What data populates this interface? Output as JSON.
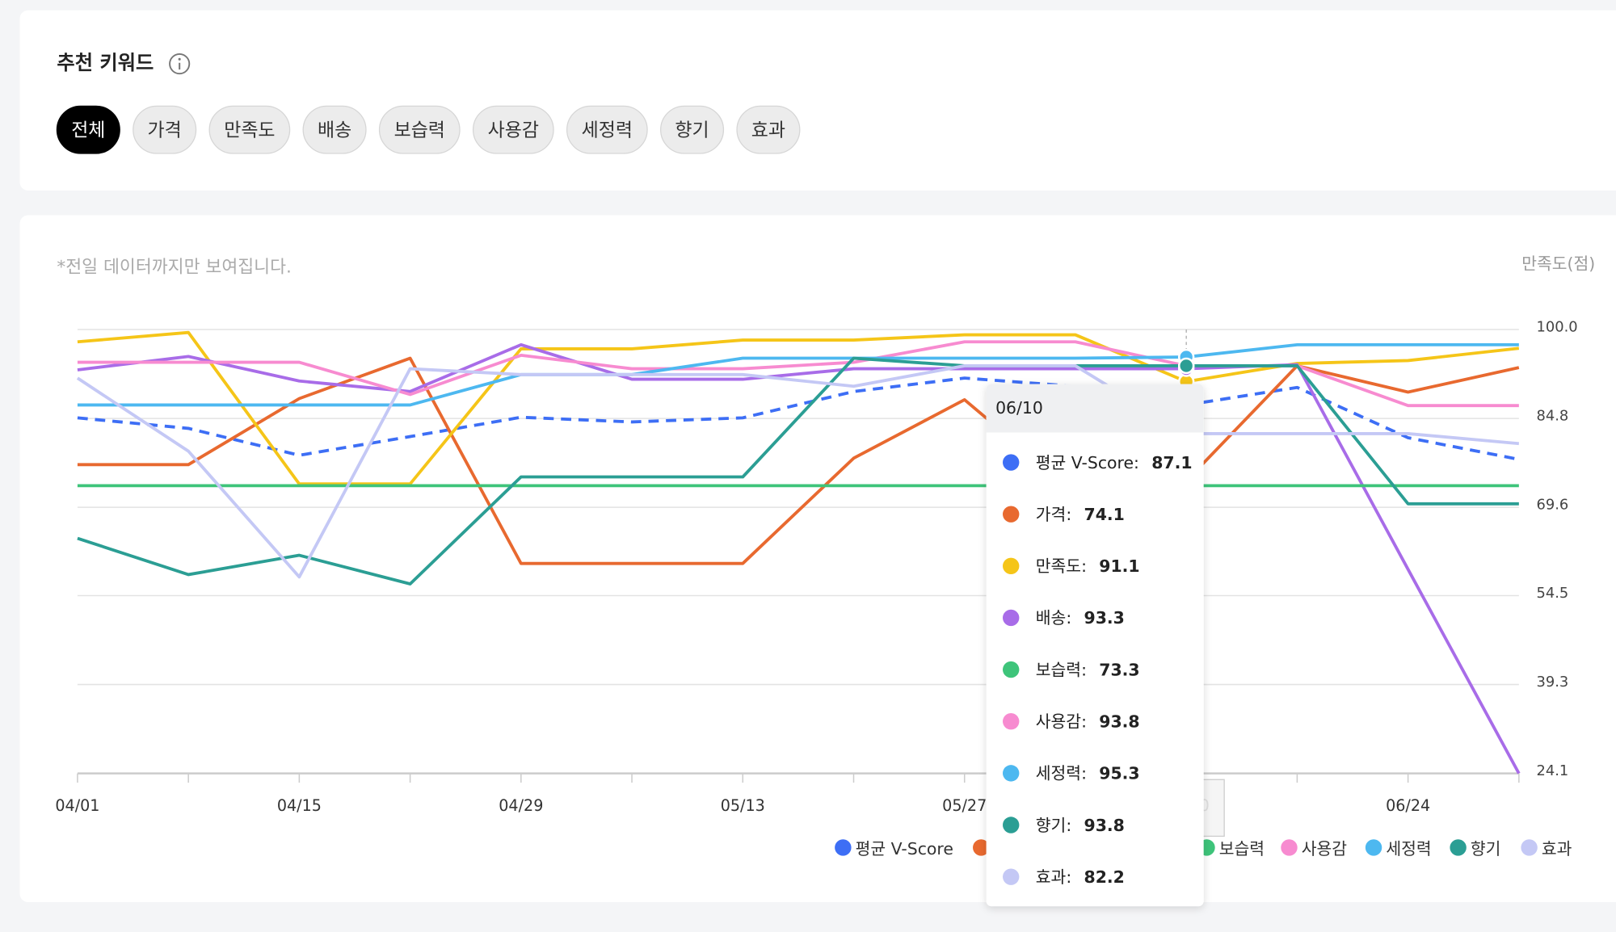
{
  "header": {
    "title": "추천 키워드",
    "chips": [
      "전체",
      "가격",
      "만족도",
      "배송",
      "보습력",
      "사용감",
      "세정력",
      "향기",
      "효과"
    ],
    "active_index": 0
  },
  "note": "*전일 데이터까지만 보여집니다.",
  "chart_data": {
    "type": "line",
    "y_axis_label": "만족도(점)",
    "categories": [
      "04/01",
      null,
      "04/15",
      null,
      "04/29",
      null,
      "05/13",
      null,
      "05/27",
      null,
      "06/10",
      null,
      "06/24",
      null
    ],
    "ylim": [
      24.1,
      100
    ],
    "yticks": [
      24.1,
      39.3,
      54.5,
      69.6,
      84.8,
      {
        "value": 100,
        "label": "100.0"
      }
    ],
    "series": [
      {
        "name": "평균 V-Score",
        "color": "#3d6ef5",
        "style": "dashed",
        "values": [
          84.9,
          83.1,
          78.5,
          81.7,
          85.0,
          84.2,
          84.9,
          89.4,
          91.7,
          90.3,
          87.1,
          90.1,
          81.5,
          77.8
        ]
      },
      {
        "name": "가격",
        "color": "#e8692f",
        "values": [
          76.9,
          76.9,
          88.2,
          95.1,
          60.0,
          60.0,
          60.0,
          78.0,
          88.0,
          72.0,
          74.1,
          93.8,
          89.3,
          93.5
        ]
      },
      {
        "name": "만족도",
        "color": "#f5c518",
        "values": [
          97.9,
          99.5,
          73.6,
          73.6,
          96.7,
          96.7,
          98.2,
          98.2,
          99.1,
          99.1,
          91.1,
          94.2,
          94.7,
          96.8
        ]
      },
      {
        "name": "배송",
        "color": "#a86ce8",
        "values": [
          93.1,
          95.4,
          91.2,
          89.4,
          97.4,
          91.5,
          91.5,
          93.3,
          93.3,
          93.3,
          93.3,
          94.0,
          59.0,
          24.1
        ]
      },
      {
        "name": "보습력",
        "color": "#3ec47a",
        "values": [
          73.3,
          73.3,
          73.3,
          73.3,
          73.3,
          73.3,
          73.3,
          73.3,
          73.3,
          73.3,
          73.3,
          73.3,
          73.3,
          73.3
        ]
      },
      {
        "name": "사용감",
        "color": "#f78bd0",
        "values": [
          94.4,
          94.4,
          94.4,
          88.9,
          95.6,
          93.3,
          93.3,
          94.4,
          97.9,
          97.9,
          93.8,
          93.8,
          87.0,
          87.0
        ]
      },
      {
        "name": "세정력",
        "color": "#4db8f0",
        "values": [
          87.1,
          87.1,
          87.1,
          87.1,
          92.3,
          92.3,
          95.1,
          95.1,
          95.1,
          95.1,
          95.3,
          97.4,
          97.4,
          97.4
        ]
      },
      {
        "name": "향기",
        "color": "#2b9e94",
        "values": [
          64.3,
          58.1,
          61.4,
          56.5,
          74.8,
          74.8,
          74.8,
          95.1,
          93.8,
          93.8,
          93.8,
          93.8,
          70.2,
          70.2
        ]
      },
      {
        "name": "효과",
        "color": "#c4c8f5",
        "values": [
          91.7,
          79.2,
          57.7,
          93.3,
          92.3,
          92.3,
          92.3,
          90.3,
          93.8,
          93.8,
          82.2,
          82.2,
          82.2,
          80.5
        ]
      }
    ]
  },
  "tooltip": {
    "index": 10,
    "separator": ":"
  }
}
